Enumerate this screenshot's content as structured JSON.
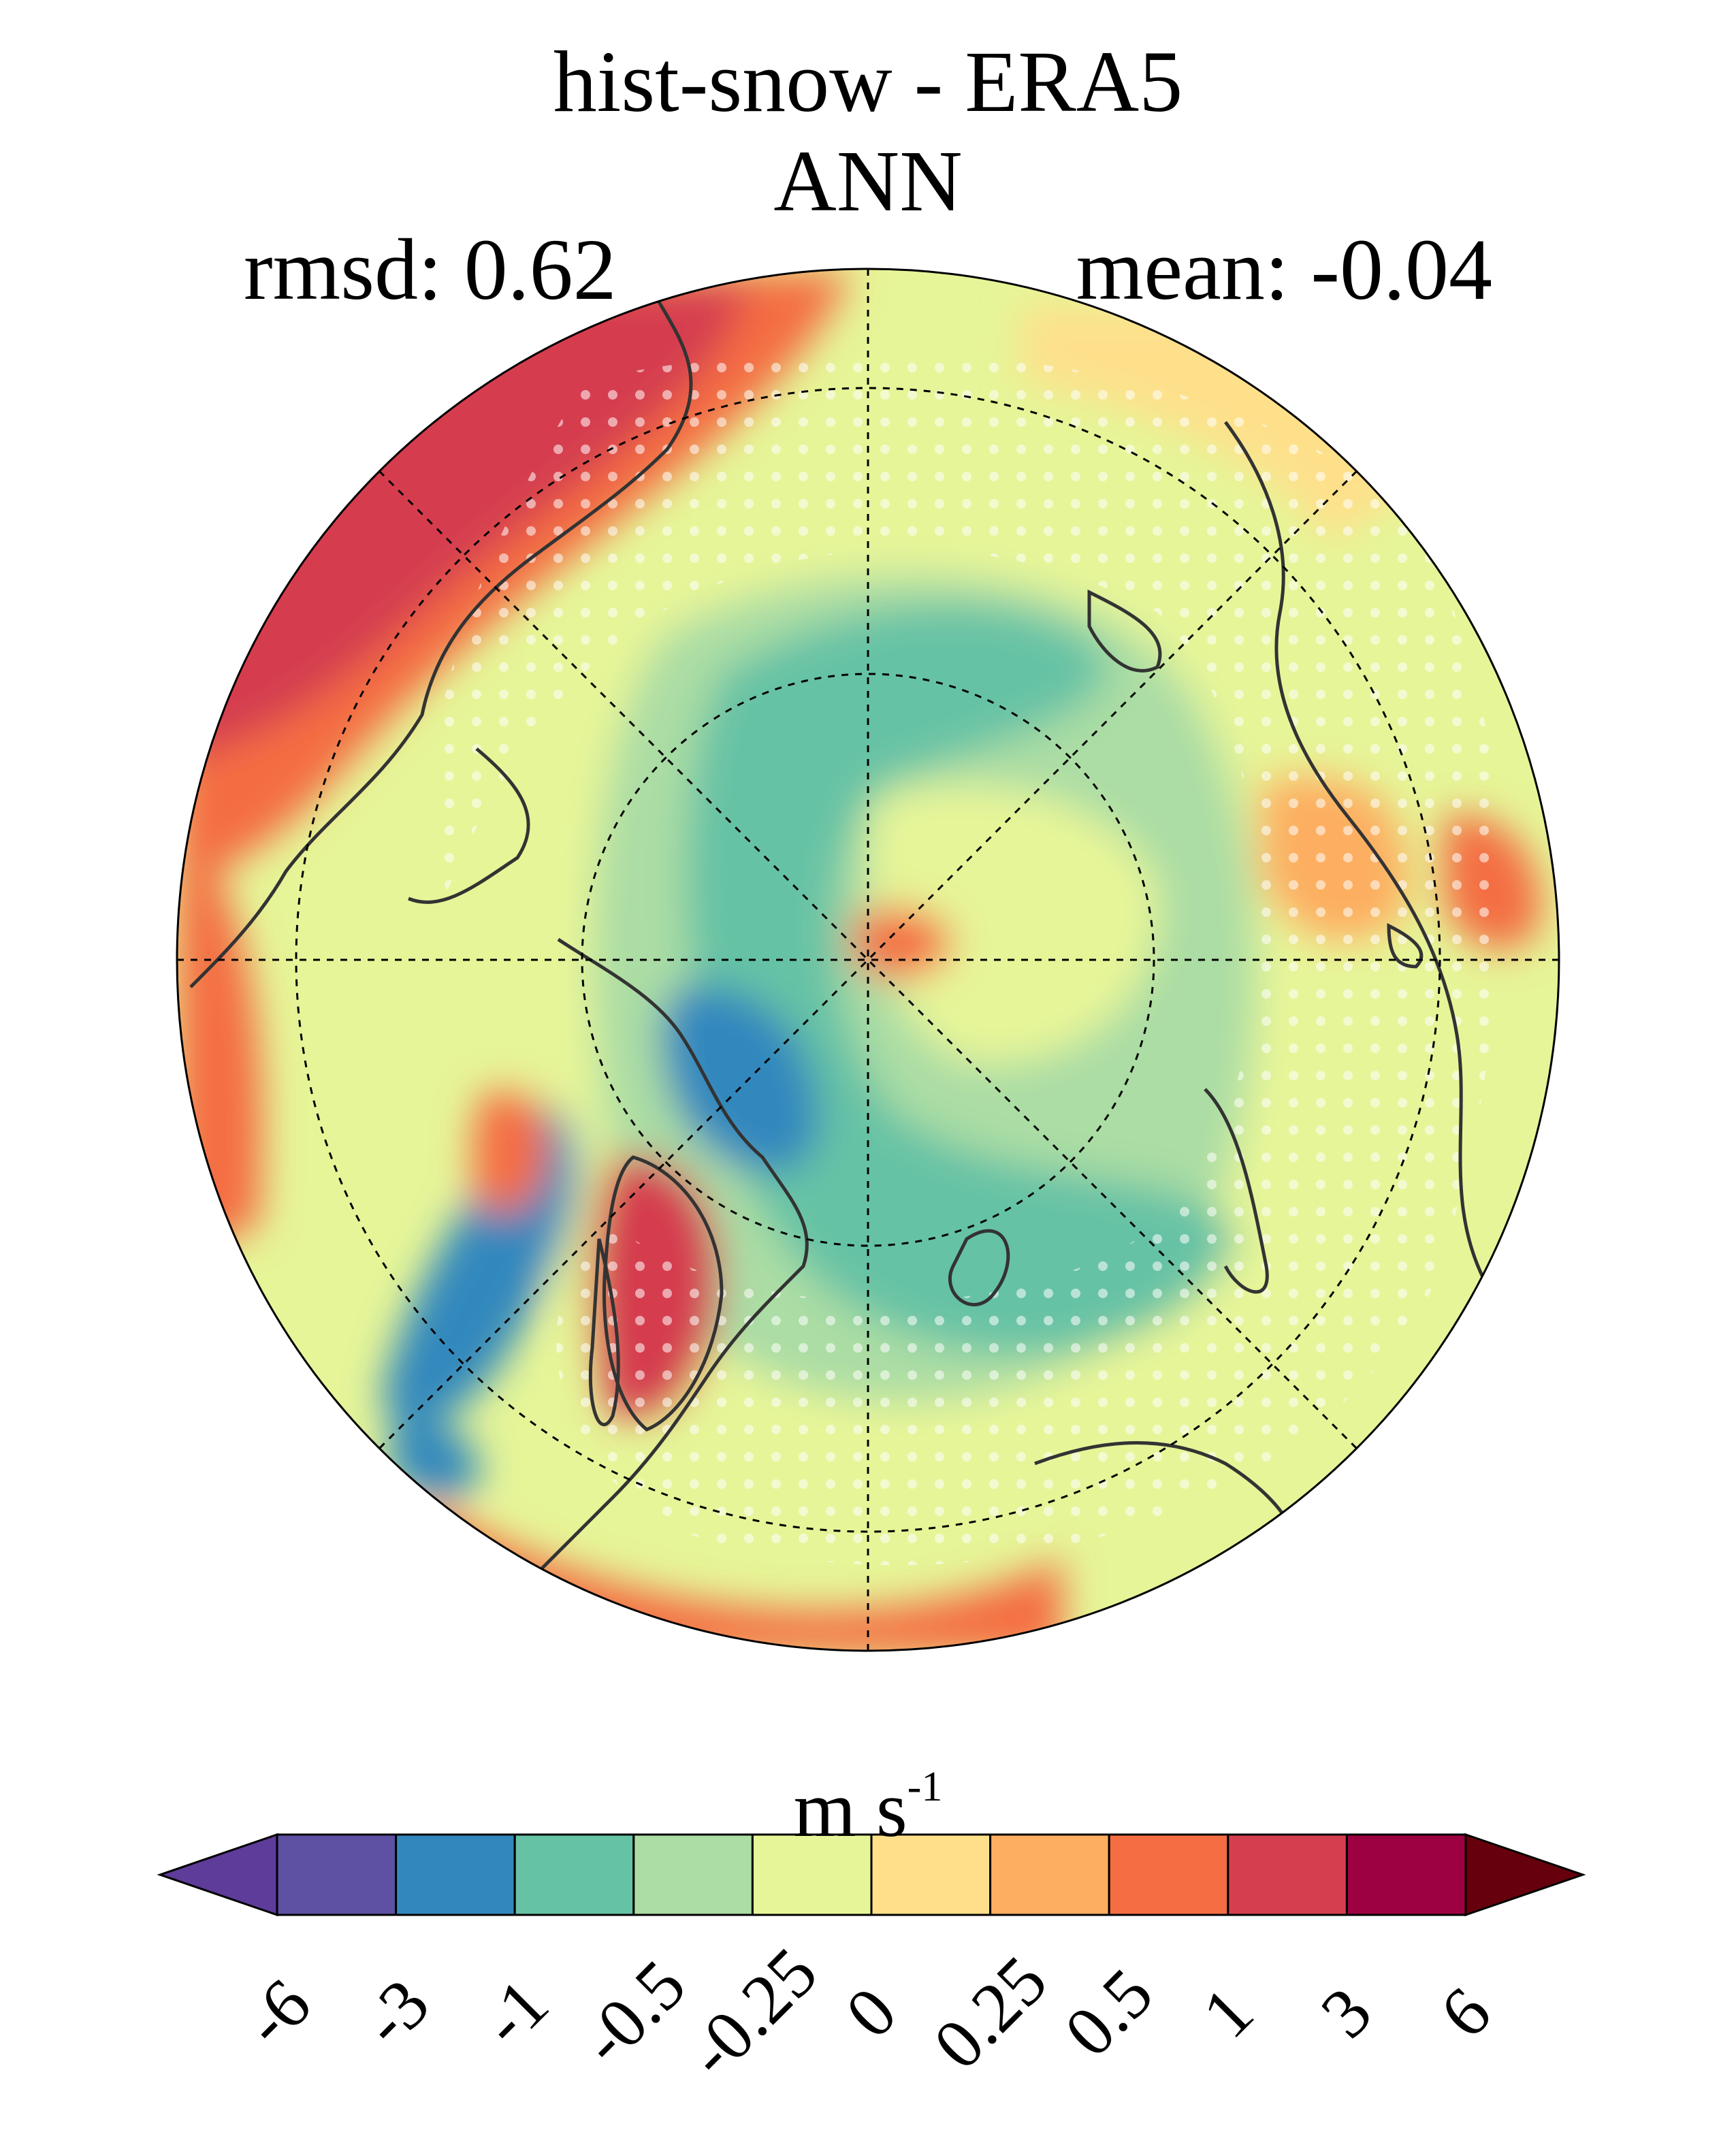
{
  "title": "hist-snow - ERA5",
  "subtitle": "ANN",
  "stats": {
    "rmsd": "rmsd: 0.62",
    "mean": "mean: -0.04"
  },
  "units": {
    "base": "m s",
    "exp": "-1"
  },
  "colorbar": {
    "labels": [
      "-6",
      "-3",
      "-1",
      "-0.5",
      "-0.25",
      "0",
      "0.25",
      "0.5",
      "1",
      "3",
      "6"
    ],
    "colors": [
      "#5e3c99",
      "#5e50a2",
      "#3288bd",
      "#66c2a5",
      "#abdda4",
      "#e6f598",
      "#fee08b",
      "#fdae61",
      "#f46d43",
      "#d53e4f",
      "#9e0142",
      "#67000d"
    ]
  },
  "map_colors": {
    "lt_neg3": "#3288bd",
    "neg1": "#66c2a5",
    "neg05": "#abdda4",
    "neg025": "#e6f598",
    "pos0": "#fee08b",
    "pos025": "#fdae61",
    "pos05": "#f46d43",
    "pos1": "#d53e4f"
  }
}
